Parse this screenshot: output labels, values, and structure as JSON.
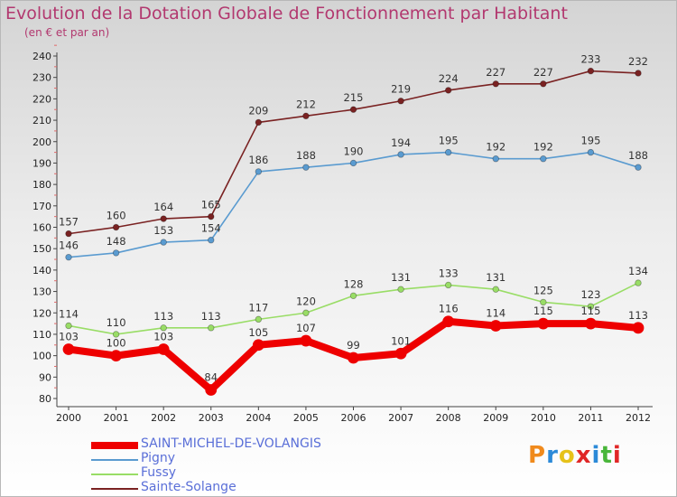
{
  "header": {
    "title": "Evolution de la Dotation Globale de Fonctionnement par Habitant",
    "subtitle": "(en € et par an)"
  },
  "logo": {
    "text": "Proxiti",
    "colors": [
      "#f08a1c",
      "#2c8ad8",
      "#e6c21a",
      "#e02727",
      "#2c8ad8",
      "#49b63a",
      "#e02727"
    ]
  },
  "chart_data": {
    "type": "line",
    "title": "Evolution de la Dotation Globale de Fonctionnement par Habitant",
    "subtitle": "(en € et par an)",
    "xlabel": "",
    "ylabel": "",
    "ylim": [
      80,
      240
    ],
    "ytick_step": 10,
    "grid": false,
    "legend_position": "bottom-left",
    "x": [
      "2000",
      "2001",
      "2002",
      "2003",
      "2004",
      "2005",
      "2006",
      "2007",
      "2008",
      "2009",
      "2010",
      "2011",
      "2012"
    ],
    "series": [
      {
        "name": "SAINT-MICHEL-DE-VOLANGIS",
        "color": "#ee0000",
        "bold": true,
        "values": [
          103,
          100,
          103,
          84,
          105,
          107,
          99,
          101,
          116,
          114,
          115,
          115,
          113
        ]
      },
      {
        "name": "Pigny",
        "color": "#5a9bd0",
        "bold": false,
        "values": [
          146,
          148,
          153,
          154,
          186,
          188,
          190,
          194,
          195,
          192,
          192,
          195,
          188
        ]
      },
      {
        "name": "Fussy",
        "color": "#99dd66",
        "bold": false,
        "values": [
          114,
          110,
          113,
          113,
          117,
          120,
          128,
          131,
          133,
          131,
          125,
          123,
          134
        ]
      },
      {
        "name": "Sainte-Solange",
        "color": "#7a2222",
        "bold": false,
        "values": [
          157,
          160,
          164,
          165,
          209,
          212,
          215,
          219,
          224,
          227,
          227,
          233,
          232
        ]
      }
    ]
  }
}
